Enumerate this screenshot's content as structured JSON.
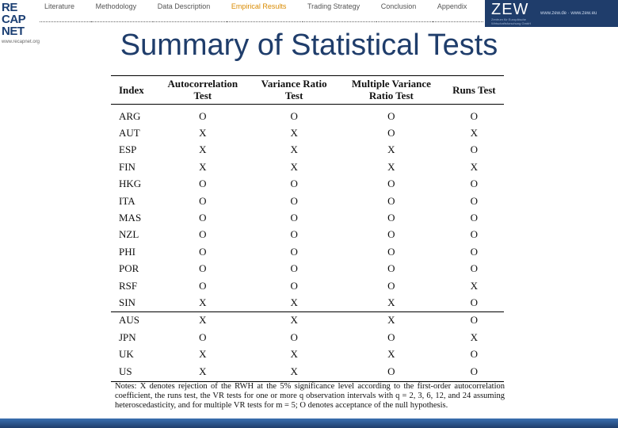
{
  "header": {
    "logo": {
      "lines": [
        "RE",
        "CAP",
        "NET"
      ],
      "url": "www.recapnet.org"
    },
    "nav": [
      "Literature",
      "Methodology",
      "Data Description",
      "Empirical Results",
      "Trading Strategy",
      "Conclusion",
      "Appendix"
    ],
    "active": 3,
    "zew": {
      "name": "ZEW",
      "subtitle": "Zentrum für Europäische Wirtschaftsforschung GmbH",
      "url": "www.zew.de · www.zew.eu"
    }
  },
  "title": "Summary of Statistical Tests",
  "table": {
    "columns": [
      "Index",
      "Autocorrelation\nTest",
      "Variance Ratio\nTest",
      "Multiple Variance\nRatio Test",
      "Runs Test"
    ],
    "row_groups": [
      [
        [
          "ARG",
          "O",
          "O",
          "O",
          "O"
        ],
        [
          "AUT",
          "X",
          "X",
          "O",
          "X"
        ],
        [
          "ESP",
          "X",
          "X",
          "X",
          "O"
        ],
        [
          "FIN",
          "X",
          "X",
          "X",
          "X"
        ],
        [
          "HKG",
          "O",
          "O",
          "O",
          "O"
        ],
        [
          "ITA",
          "O",
          "O",
          "O",
          "O"
        ],
        [
          "MAS",
          "O",
          "O",
          "O",
          "O"
        ],
        [
          "NZL",
          "O",
          "O",
          "O",
          "O"
        ],
        [
          "PHI",
          "O",
          "O",
          "O",
          "O"
        ],
        [
          "POR",
          "O",
          "O",
          "O",
          "O"
        ],
        [
          "RSF",
          "O",
          "O",
          "O",
          "X"
        ],
        [
          "SIN",
          "X",
          "X",
          "X",
          "O"
        ]
      ],
      [
        [
          "AUS",
          "X",
          "X",
          "X",
          "O"
        ],
        [
          "JPN",
          "O",
          "O",
          "O",
          "X"
        ],
        [
          "UK",
          "X",
          "X",
          "X",
          "O"
        ],
        [
          "US",
          "X",
          "X",
          "O",
          "O"
        ]
      ]
    ]
  },
  "notes": "Notes: X denotes rejection of the RWH at the 5% significance level according to the first-order autocorrelation coefficient, the runs test, the VR tests for one or more q observation intervals with q = 2, 3, 6, 12, and 24 assuming heteroscedasticity, and for multiple VR tests for m = 5; O denotes acceptance of the null hypothesis."
}
